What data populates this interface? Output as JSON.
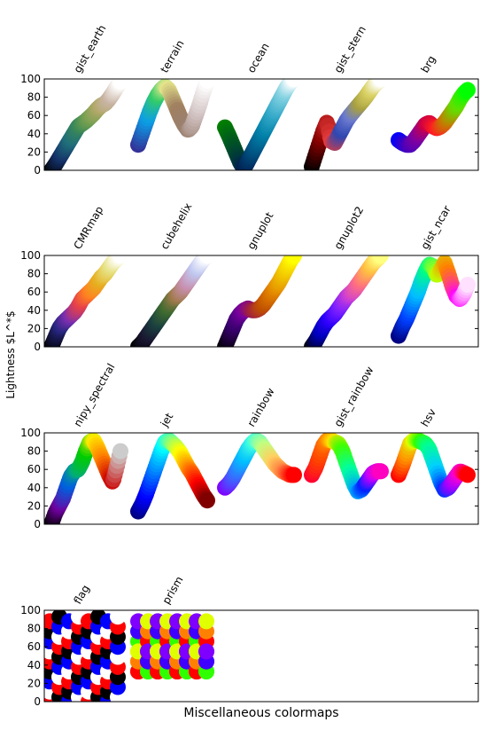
{
  "figure": {
    "ylabel": "Lightness $L^*$",
    "xlabel": "Miscellaneous colormaps"
  },
  "chart_data": [
    {
      "type": "scatter",
      "ylim": [
        0,
        100
      ],
      "yticks": [
        0,
        20,
        40,
        60,
        80,
        100
      ],
      "grid": false,
      "series": [
        {
          "name": "gist_earth",
          "colors": [
            "#000000",
            "#143068",
            "#1f6e7a",
            "#3d8a55",
            "#77a050",
            "#b2a868",
            "#c8b4a4",
            "#ffffff"
          ],
          "y": [
            0,
            6,
            13,
            20,
            27,
            34,
            41,
            48,
            51,
            54,
            58,
            62,
            67,
            71,
            73,
            78,
            84,
            91,
            97
          ]
        },
        {
          "name": "terrain",
          "colors": [
            "#333399",
            "#0b9ee6",
            "#33cc66",
            "#e6e68c",
            "#a08060",
            "#9a8070",
            "#d0c0c0",
            "#ffffff"
          ],
          "y": [
            28,
            40,
            52,
            64,
            74,
            82,
            88,
            92,
            88,
            78,
            68,
            58,
            50,
            44,
            48,
            60,
            72,
            86,
            98
          ]
        },
        {
          "name": "ocean",
          "colors": [
            "#007f00",
            "#004f28",
            "#001e50",
            "#005080",
            "#0080a8",
            "#33a8c8",
            "#80d0e0",
            "#ffffff"
          ],
          "y": [
            47,
            38,
            28,
            18,
            8,
            2,
            10,
            18,
            26,
            34,
            42,
            50,
            58,
            66,
            74,
            82,
            90,
            96,
            100
          ]
        },
        {
          "name": "gist_stern",
          "colors": [
            "#000000",
            "#8a0000",
            "#e63b3b",
            "#2f46b0",
            "#6b7ad0",
            "#a8a040",
            "#d8d060",
            "#ffffff"
          ],
          "y": [
            4,
            17,
            30,
            43,
            53,
            32,
            30,
            38,
            46,
            54,
            60,
            65,
            70,
            75,
            80,
            86,
            92,
            96,
            100
          ]
        },
        {
          "name": "brg",
          "colors": [
            "#0000ff",
            "#4000c0",
            "#8000a0",
            "#d00040",
            "#ff2020",
            "#c08000",
            "#60e000",
            "#00ff00"
          ],
          "y": [
            33,
            30,
            28,
            28,
            32,
            38,
            44,
            50,
            52,
            48,
            46,
            48,
            52,
            58,
            64,
            70,
            78,
            84,
            88
          ]
        }
      ]
    },
    {
      "type": "scatter",
      "ylim": [
        0,
        100
      ],
      "yticks": [
        0,
        20,
        40,
        60,
        80,
        100
      ],
      "grid": false,
      "series": [
        {
          "name": "CMRmap",
          "colors": [
            "#000000",
            "#262680",
            "#7a2eb0",
            "#e6404a",
            "#ff8020",
            "#e6b020",
            "#e6e080",
            "#ffffff"
          ],
          "y": [
            0,
            10,
            20,
            26,
            30,
            34,
            38,
            44,
            52,
            56,
            60,
            64,
            70,
            76,
            80,
            86,
            92,
            96,
            100
          ]
        },
        {
          "name": "cubehelix",
          "colors": [
            "#000000",
            "#1a1530",
            "#1a4040",
            "#3e6a2f",
            "#a07a4a",
            "#c890b0",
            "#c0c8f0",
            "#ffffff"
          ],
          "y": [
            0,
            4,
            10,
            16,
            22,
            28,
            34,
            40,
            46,
            52,
            56,
            60,
            66,
            72,
            78,
            84,
            90,
            96,
            100
          ]
        },
        {
          "name": "gnuplot",
          "colors": [
            "#000000",
            "#3a0070",
            "#7a00a0",
            "#a02040",
            "#c05000",
            "#e08000",
            "#f0c000",
            "#ffff00"
          ],
          "y": [
            0,
            10,
            20,
            30,
            36,
            40,
            42,
            40,
            40,
            42,
            46,
            52,
            58,
            64,
            70,
            78,
            86,
            94,
            100
          ]
        },
        {
          "name": "gnuplot2",
          "colors": [
            "#000000",
            "#0000c0",
            "#3000ff",
            "#8020ff",
            "#d040d0",
            "#ff7080",
            "#ffc040",
            "#ffff80"
          ],
          "y": [
            0,
            6,
            14,
            22,
            28,
            32,
            36,
            42,
            48,
            54,
            58,
            62,
            68,
            74,
            80,
            86,
            92,
            96,
            100
          ]
        },
        {
          "name": "gist_ncar",
          "colors": [
            "#000080",
            "#0040ff",
            "#00c0ff",
            "#00ff80",
            "#c0ff00",
            "#ff8000",
            "#ff00ff",
            "#ffe0ff"
          ],
          "y": [
            12,
            22,
            30,
            40,
            50,
            60,
            72,
            82,
            90,
            88,
            78,
            84,
            92,
            80,
            66,
            56,
            52,
            58,
            68
          ]
        }
      ]
    },
    {
      "type": "scatter",
      "ylim": [
        0,
        100
      ],
      "yticks": [
        0,
        20,
        40,
        60,
        80,
        100
      ],
      "grid": false,
      "series": [
        {
          "name": "nipy_spectral",
          "colors": [
            "#000000",
            "#7000a0",
            "#0060dd",
            "#00aa80",
            "#00cc00",
            "#ffee00",
            "#ff8000",
            "#cc0000",
            "#cccccc"
          ],
          "y": [
            0,
            12,
            20,
            28,
            40,
            52,
            58,
            60,
            68,
            80,
            90,
            92,
            84,
            74,
            64,
            54,
            46,
            62,
            80
          ]
        },
        {
          "name": "jet",
          "colors": [
            "#000080",
            "#0000ff",
            "#0080ff",
            "#00ffff",
            "#80ff80",
            "#ffff00",
            "#ff8000",
            "#ff0000",
            "#800000"
          ],
          "y": [
            14,
            22,
            32,
            44,
            56,
            68,
            80,
            90,
            92,
            88,
            84,
            78,
            70,
            62,
            56,
            48,
            40,
            32,
            26
          ]
        },
        {
          "name": "rainbow",
          "colors": [
            "#8000ff",
            "#4060ff",
            "#00c0ff",
            "#40ffe0",
            "#c0ff80",
            "#ffd060",
            "#ff8040",
            "#ff0000"
          ],
          "y": [
            40,
            44,
            50,
            58,
            66,
            74,
            82,
            88,
            92,
            90,
            84,
            78,
            72,
            66,
            62,
            58,
            56,
            54,
            54
          ]
        },
        {
          "name": "gist_rainbow",
          "colors": [
            "#ff0030",
            "#ff4000",
            "#ff8000",
            "#ffe000",
            "#40ff00",
            "#00ffa0",
            "#00a0ff",
            "#0020ff",
            "#c000ff",
            "#ff00c0"
          ],
          "y": [
            54,
            62,
            74,
            86,
            92,
            92,
            90,
            88,
            80,
            68,
            56,
            44,
            36,
            38,
            44,
            50,
            56,
            58,
            58
          ]
        },
        {
          "name": "hsv",
          "colors": [
            "#ff0000",
            "#ff9000",
            "#e0ff00",
            "#30ff00",
            "#00ff90",
            "#00d0ff",
            "#0030ff",
            "#a000ff",
            "#ff00d0",
            "#ff0000"
          ],
          "y": [
            54,
            64,
            76,
            88,
            92,
            92,
            90,
            88,
            82,
            70,
            58,
            46,
            38,
            40,
            46,
            52,
            58,
            56,
            54
          ]
        }
      ]
    },
    {
      "type": "scatter",
      "ylim": [
        0,
        100
      ],
      "yticks": [
        0,
        20,
        40,
        60,
        80,
        100
      ],
      "grid": false,
      "series": [
        {
          "name": "flag",
          "note_pattern": "periodic",
          "colors": [
            "#ff0000",
            "#ffffff",
            "#0000ff",
            "#000000"
          ],
          "x_count": 36,
          "period": 4
        },
        {
          "name": "prism",
          "note_pattern": "periodic",
          "colors": [
            "#ff0000",
            "#ff8000",
            "#e0ff00",
            "#30ff00",
            "#4000ff",
            "#8000ff"
          ],
          "x_count": 36,
          "period": 6
        }
      ]
    }
  ]
}
